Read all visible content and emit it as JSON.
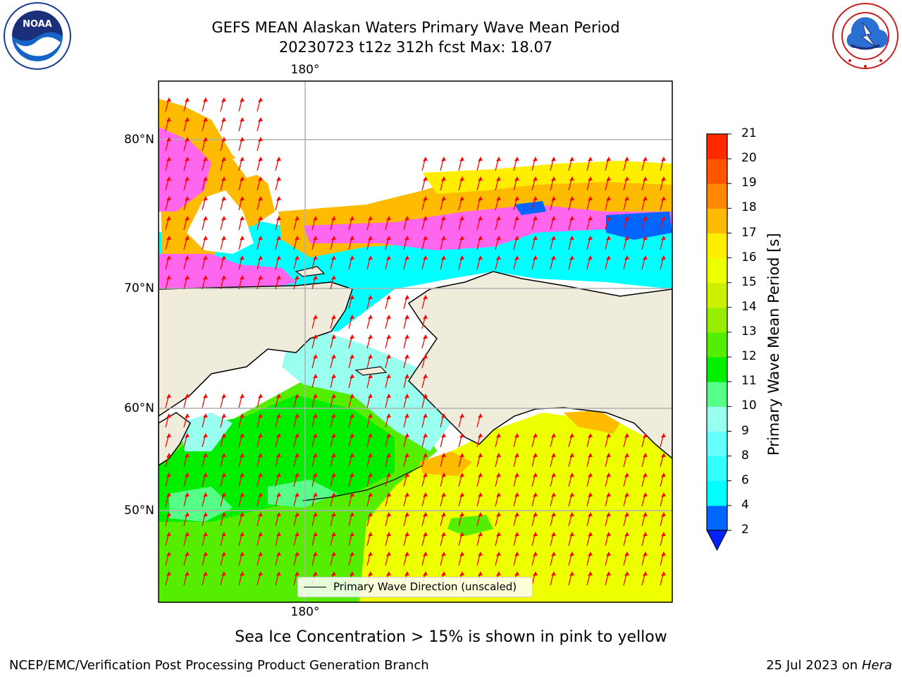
{
  "title": {
    "line1": "GEFS MEAN Alaskan Waters Primary Wave Mean Period",
    "line2": "20230723 t12z 312h fcst   Max: 18.07"
  },
  "map": {
    "lon_label_top": "180°",
    "lon_label_bottom": "180°",
    "lat_labels": [
      "80°N",
      "70°N",
      "60°N",
      "50°N"
    ],
    "land_color": "#efecdc",
    "grid_color": "#b0b0b0",
    "arrow_color": "#ff0000",
    "legend_label": "Primary Wave Direction (unscaled)"
  },
  "colorbar": {
    "label": "Primary Wave Mean Period [s]",
    "ticks": [
      "2",
      "4",
      "6",
      "8",
      "9",
      "10",
      "11",
      "12",
      "13",
      "14",
      "15",
      "16",
      "17",
      "18",
      "19",
      "20",
      "21"
    ],
    "colors": [
      "#0066ff",
      "#00ffff",
      "#33ffff",
      "#66ffff",
      "#99ffee",
      "#55ff88",
      "#00ee00",
      "#55ee00",
      "#99ee00",
      "#ccf000",
      "#eeff00",
      "#ffee00",
      "#ffbb00",
      "#ff8800",
      "#ff5500",
      "#ff2a00",
      "#ff0000"
    ],
    "extend_color": "#0022ff"
  },
  "note": "Sea Ice Concentration > 15% is shown in pink to yellow",
  "footer": {
    "left": "NCEP/EMC/Verification Post Processing Product Generation Branch",
    "right_date": "25 Jul 2023 on ",
    "right_host": "Hera"
  },
  "logos": {
    "noaa_text": "NOAA",
    "noaa_ring": "NATIONAL OCEANIC AND ATMOSPHERIC ADMINISTRATION · U.S. DEPARTMENT OF COMMERCE",
    "nws_ring": "NATIONAL WEATHER SERVICE"
  }
}
